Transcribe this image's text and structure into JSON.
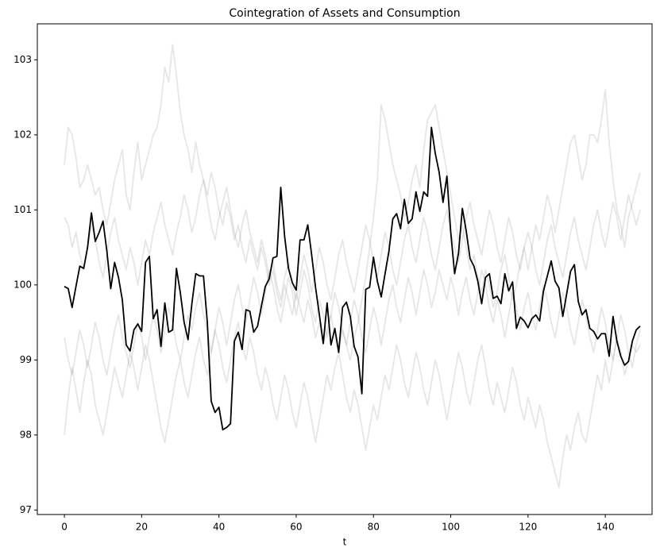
{
  "chart_data": {
    "type": "line",
    "title": "Cointegration of Assets and Consumption",
    "x_label": "t",
    "x": [
      0,
      1,
      2,
      3,
      4,
      5,
      6,
      7,
      8,
      9,
      10,
      11,
      12,
      13,
      14,
      15,
      16,
      17,
      18,
      19,
      20,
      21,
      22,
      23,
      24,
      25,
      26,
      27,
      28,
      29,
      30,
      31,
      32,
      33,
      34,
      35,
      36,
      37,
      38,
      39,
      40,
      41,
      42,
      43,
      44,
      45,
      46,
      47,
      48,
      49,
      50,
      51,
      52,
      53,
      54,
      55,
      56,
      57,
      58,
      59,
      60,
      61,
      62,
      63,
      64,
      65,
      66,
      67,
      68,
      69,
      70,
      71,
      72,
      73,
      74,
      75,
      76,
      77,
      78,
      79,
      80,
      81,
      82,
      83,
      84,
      85,
      86,
      87,
      88,
      89,
      90,
      91,
      92,
      93,
      94,
      95,
      96,
      97,
      98,
      99,
      100,
      101,
      102,
      103,
      104,
      105,
      106,
      107,
      108,
      109,
      110,
      111,
      112,
      113,
      114,
      115,
      116,
      117,
      118,
      119,
      120,
      121,
      122,
      123,
      124,
      125,
      126,
      127,
      128,
      129,
      130,
      131,
      132,
      133,
      134,
      135,
      136,
      137,
      138,
      139,
      140,
      141,
      142,
      143,
      144,
      145,
      146,
      147,
      148,
      149
    ],
    "xlim": [
      -7,
      152.1
    ],
    "xticks": [
      0,
      20,
      40,
      60,
      80,
      100,
      120,
      140
    ],
    "ylim": [
      96.94,
      103.48
    ],
    "yticks": [
      97,
      98,
      99,
      100,
      101,
      102,
      103
    ],
    "series": [
      {
        "color": "#808080",
        "opacity": 0.2,
        "values": [
          101.6,
          102.1,
          102.0,
          101.7,
          101.3,
          101.4,
          101.6,
          101.4,
          101.2,
          101.3,
          101.0,
          100.8,
          101.1,
          101.4,
          101.6,
          101.8,
          101.2,
          101.0,
          101.5,
          101.9,
          101.4,
          101.6,
          101.8,
          102.0,
          102.1,
          102.4,
          102.9,
          102.7,
          103.2,
          102.8,
          102.3,
          102.0,
          101.8,
          101.5,
          101.9,
          101.6,
          101.4,
          101.2,
          101.5,
          101.3,
          101.0,
          100.8,
          101.1,
          100.9,
          100.6,
          100.8,
          100.5,
          100.3,
          100.6,
          100.4,
          100.2,
          100.5,
          100.3,
          100.0,
          100.2,
          99.9,
          99.7,
          100.0,
          99.8,
          99.6,
          99.9,
          99.7,
          99.5,
          99.8,
          99.6,
          99.3,
          99.5,
          99.2,
          99.4,
          99.6,
          99.3,
          99.1,
          99.4,
          99.2,
          99.0,
          99.3,
          99.5,
          99.8,
          100.1,
          100.5,
          100.9,
          101.4,
          102.4,
          102.2,
          101.9,
          101.6,
          101.4,
          101.2,
          100.9,
          101.1,
          101.4,
          101.6,
          101.3,
          101.8,
          102.2,
          102.3,
          102.4,
          102.1,
          101.8,
          101.5,
          101.2,
          100.9,
          100.6,
          100.8,
          100.5,
          100.2,
          100.4,
          100.1,
          99.9,
          100.2,
          100.0,
          99.7,
          99.9,
          100.2,
          100.4,
          100.1,
          99.8,
          100.0,
          100.3,
          100.5,
          100.2,
          100.5,
          100.8,
          100.6,
          100.9,
          101.2,
          101.0,
          100.7,
          101.0,
          101.3,
          101.6,
          101.9,
          102.0,
          101.7,
          101.4,
          101.6,
          102.0,
          102.0,
          101.9,
          102.2,
          102.6,
          101.9,
          101.4,
          101.0,
          100.8,
          100.5,
          100.9,
          101.1,
          101.3,
          101.5
        ]
      },
      {
        "color": "#808080",
        "opacity": 0.2,
        "values": [
          98.0,
          98.5,
          98.9,
          98.6,
          98.3,
          98.7,
          99.0,
          98.8,
          98.4,
          98.2,
          98.0,
          98.3,
          98.6,
          98.9,
          98.7,
          98.5,
          98.8,
          99.1,
          98.9,
          98.6,
          98.9,
          99.2,
          99.0,
          98.7,
          98.4,
          98.1,
          97.9,
          98.2,
          98.5,
          98.8,
          99.0,
          98.7,
          98.5,
          98.8,
          99.1,
          99.3,
          99.0,
          98.8,
          99.1,
          99.4,
          99.2,
          98.9,
          98.7,
          99.0,
          99.3,
          99.5,
          99.2,
          99.0,
          99.3,
          99.1,
          98.8,
          98.6,
          98.9,
          98.7,
          98.4,
          98.2,
          98.5,
          98.8,
          98.6,
          98.3,
          98.1,
          98.4,
          98.7,
          98.5,
          98.2,
          97.9,
          98.2,
          98.5,
          98.8,
          98.6,
          98.9,
          99.1,
          98.8,
          98.5,
          98.3,
          98.6,
          98.4,
          98.1,
          97.8,
          98.1,
          98.4,
          98.2,
          98.5,
          98.8,
          98.6,
          98.9,
          99.2,
          99.0,
          98.7,
          98.5,
          98.8,
          99.1,
          98.9,
          98.6,
          98.4,
          98.7,
          99.0,
          98.8,
          98.5,
          98.2,
          98.5,
          98.8,
          99.1,
          98.9,
          98.6,
          98.4,
          98.7,
          99.0,
          99.2,
          98.9,
          98.6,
          98.4,
          98.7,
          98.5,
          98.3,
          98.6,
          98.9,
          98.7,
          98.4,
          98.2,
          98.5,
          98.3,
          98.1,
          98.4,
          98.2,
          97.9,
          97.7,
          97.5,
          97.3,
          97.7,
          98.0,
          97.8,
          98.1,
          98.3,
          98.0,
          97.9,
          98.2,
          98.5,
          98.8,
          98.6,
          99.0,
          98.7,
          99.0,
          99.3,
          99.1,
          98.8,
          99.0,
          99.2,
          99.1,
          99.2
        ]
      },
      {
        "color": "#808080",
        "opacity": 0.2,
        "values": [
          100.9,
          100.8,
          100.5,
          100.7,
          100.4,
          100.2,
          100.5,
          100.8,
          100.6,
          100.3,
          100.1,
          100.4,
          100.7,
          100.9,
          100.6,
          100.4,
          100.2,
          100.5,
          100.3,
          100.0,
          100.3,
          100.6,
          100.4,
          100.7,
          100.9,
          101.1,
          100.8,
          100.6,
          100.4,
          100.7,
          100.9,
          101.2,
          101.0,
          100.7,
          100.9,
          101.2,
          101.4,
          101.1,
          100.8,
          100.6,
          100.9,
          101.1,
          101.3,
          101.0,
          100.7,
          100.5,
          100.8,
          101.0,
          100.7,
          100.5,
          100.3,
          100.6,
          100.4,
          100.1,
          100.3,
          100.0,
          99.8,
          100.1,
          100.3,
          100.0,
          99.8,
          100.1,
          100.4,
          100.2,
          99.9,
          100.2,
          100.5,
          100.3,
          100.0,
          99.8,
          100.1,
          100.4,
          100.6,
          100.3,
          100.1,
          99.9,
          100.2,
          100.5,
          100.8,
          100.6,
          100.3,
          100.1,
          100.4,
          100.7,
          100.5,
          100.2,
          100.0,
          100.3,
          100.6,
          100.8,
          100.5,
          100.3,
          100.6,
          100.9,
          100.7,
          100.4,
          100.2,
          100.5,
          100.8,
          101.0,
          100.7,
          100.5,
          100.3,
          100.6,
          100.9,
          101.1,
          100.8,
          100.6,
          100.4,
          100.7,
          101.0,
          100.8,
          100.5,
          100.3,
          100.6,
          100.9,
          100.7,
          100.4,
          100.2,
          100.5,
          100.7,
          100.5,
          100.2,
          100.0,
          100.3,
          100.6,
          100.8,
          100.5,
          100.3,
          100.1,
          100.4,
          100.7,
          100.9,
          100.6,
          100.4,
          100.2,
          100.5,
          100.8,
          101.0,
          100.7,
          100.5,
          100.8,
          101.1,
          100.9,
          100.6,
          100.9,
          101.2,
          101.0,
          100.8,
          101.0
        ]
      },
      {
        "color": "#808080",
        "opacity": 0.2,
        "values": [
          99.3,
          99.0,
          98.8,
          99.1,
          99.4,
          99.2,
          98.9,
          99.2,
          99.5,
          99.3,
          99.0,
          98.8,
          99.1,
          99.4,
          99.6,
          99.3,
          99.1,
          98.9,
          99.2,
          99.5,
          99.3,
          99.0,
          99.3,
          99.6,
          99.4,
          99.1,
          99.4,
          99.7,
          99.5,
          99.2,
          99.0,
          99.3,
          99.6,
          99.4,
          99.7,
          99.9,
          99.6,
          99.4,
          99.1,
          99.4,
          99.7,
          99.5,
          99.2,
          99.5,
          99.8,
          100.0,
          99.7,
          99.5,
          99.8,
          100.1,
          99.9,
          99.6,
          99.9,
          100.2,
          100.0,
          99.7,
          99.5,
          99.8,
          100.1,
          99.9,
          99.6,
          99.9,
          100.2,
          100.0,
          99.7,
          99.5,
          99.8,
          99.6,
          99.3,
          99.6,
          99.9,
          99.7,
          99.4,
          99.2,
          99.5,
          99.8,
          99.6,
          99.3,
          99.1,
          99.4,
          99.7,
          99.5,
          99.2,
          99.5,
          99.8,
          100.0,
          99.7,
          99.5,
          99.8,
          100.1,
          99.9,
          99.6,
          99.9,
          100.2,
          100.0,
          99.7,
          99.9,
          100.2,
          100.0,
          99.8,
          100.1,
          99.9,
          99.6,
          99.9,
          100.1,
          99.8,
          99.6,
          99.9,
          100.2,
          100.0,
          99.7,
          99.5,
          99.8,
          99.6,
          99.3,
          99.6,
          99.9,
          99.7,
          99.4,
          99.7,
          99.9,
          99.6,
          99.4,
          99.7,
          100.0,
          99.8,
          99.5,
          99.3,
          99.6,
          99.9,
          99.7,
          99.4,
          99.2,
          99.5,
          99.8,
          99.6,
          99.3,
          99.1,
          99.4,
          99.7,
          99.5,
          99.2,
          99.0,
          99.3,
          99.6,
          99.4,
          99.1,
          98.9,
          99.2,
          99.4
        ]
      },
      {
        "color": "#000000",
        "opacity": 1,
        "values": [
          99.98,
          99.95,
          99.7,
          99.98,
          100.25,
          100.22,
          100.5,
          100.96,
          100.58,
          100.7,
          100.85,
          100.45,
          99.95,
          100.3,
          100.1,
          99.8,
          99.2,
          99.12,
          99.4,
          99.48,
          99.38,
          100.3,
          100.38,
          99.55,
          99.67,
          99.18,
          99.76,
          99.37,
          99.4,
          100.22,
          99.9,
          99.5,
          99.27,
          99.75,
          100.15,
          100.12,
          100.12,
          99.5,
          98.45,
          98.3,
          98.37,
          98.07,
          98.1,
          98.15,
          99.25,
          99.37,
          99.14,
          99.67,
          99.65,
          99.37,
          99.45,
          99.72,
          99.98,
          100.08,
          100.36,
          100.38,
          101.3,
          100.65,
          100.22,
          100.03,
          99.93,
          100.6,
          100.6,
          100.8,
          100.4,
          99.97,
          99.6,
          99.22,
          99.76,
          99.2,
          99.42,
          99.1,
          99.7,
          99.77,
          99.58,
          99.18,
          99.04,
          98.55,
          99.94,
          99.97,
          100.37,
          100.05,
          99.84,
          100.15,
          100.45,
          100.88,
          100.95,
          100.75,
          101.14,
          100.82,
          100.88,
          101.24,
          100.98,
          101.24,
          101.18,
          102.1,
          101.75,
          101.5,
          101.1,
          101.45,
          100.7,
          100.15,
          100.42,
          101.02,
          100.72,
          100.35,
          100.25,
          100.05,
          99.75,
          100.1,
          100.15,
          99.82,
          99.85,
          99.75,
          100.15,
          99.92,
          100.04,
          99.42,
          99.57,
          99.52,
          99.43,
          99.55,
          99.6,
          99.52,
          99.92,
          100.12,
          100.32,
          100.05,
          99.96,
          99.58,
          99.88,
          100.18,
          100.27,
          99.78,
          99.6,
          99.67,
          99.42,
          99.38,
          99.28,
          99.35,
          99.35,
          99.05,
          99.58,
          99.25,
          99.05,
          98.93,
          98.98,
          99.25,
          99.4,
          99.45
        ]
      }
    ]
  }
}
